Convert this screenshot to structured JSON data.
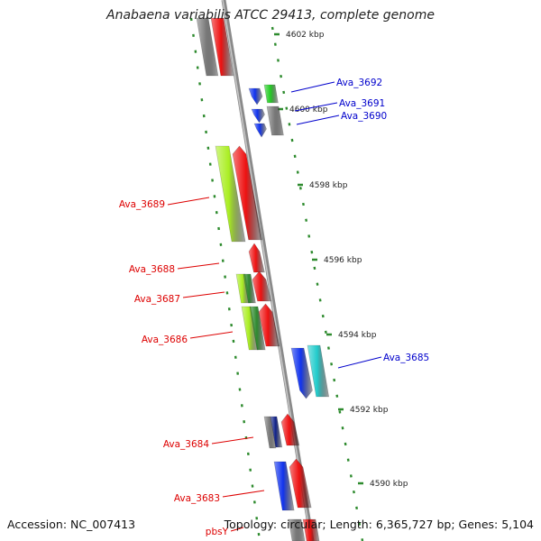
{
  "title": "Anabaena variabilis ATCC 29413, complete genome",
  "footer": {
    "accession": "Accession: NC_007413",
    "topology": "Topology: circular; Length: 6,365,727 bp; Genes: 5,104"
  },
  "colors": {
    "backbone": "#8a8a8a",
    "tick_minor": "#2e8b2e",
    "label_forward": "#0000cc",
    "label_reverse": "#dd0000",
    "gene_red": "#ee1111",
    "gene_blue": "#1133ee",
    "gene_gray": "#7a7a7a",
    "gene_lime": "#aaee22",
    "gene_darkgreen": "#2f8a2f",
    "gene_green": "#22cc22",
    "gene_cyan": "#22cccc",
    "gene_navy": "#112288"
  },
  "scale_labels": [
    "4602 kbp",
    "4600 kbp",
    "4598 kbp",
    "4596 kbp",
    "4594 kbp",
    "4592 kbp",
    "4590 kbp"
  ],
  "gene_labels": {
    "forward": [
      "Ava_3692",
      "Ava_3691",
      "Ava_3690",
      "Ava_3685"
    ],
    "reverse": [
      "Ava_3689",
      "Ava_3688",
      "Ava_3687",
      "Ava_3686",
      "Ava_3684",
      "Ava_3683",
      "pbsY"
    ]
  }
}
